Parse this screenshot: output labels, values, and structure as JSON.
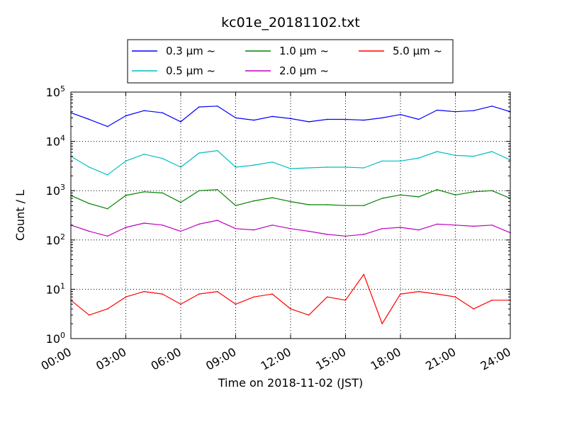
{
  "chart_data": {
    "type": "line",
    "title": "kc01e_20181102.txt",
    "xlabel": "Time on 2018-11-02 (JST)",
    "ylabel": "Count / L",
    "yscale": "log",
    "ylim": [
      1,
      100000
    ],
    "xlim": [
      "00:00",
      "24:00"
    ],
    "xticks": [
      "00:00",
      "03:00",
      "06:00",
      "09:00",
      "12:00",
      "15:00",
      "18:00",
      "21:00",
      "24:00"
    ],
    "yticks": [
      {
        "base": "10",
        "exp": "0"
      },
      {
        "base": "10",
        "exp": "1"
      },
      {
        "base": "10",
        "exp": "2"
      },
      {
        "base": "10",
        "exp": "3"
      },
      {
        "base": "10",
        "exp": "4"
      },
      {
        "base": "10",
        "exp": "5"
      }
    ],
    "grid": true,
    "legend_position": "top",
    "x_hours": [
      0,
      1,
      2,
      3,
      4,
      5,
      6,
      7,
      8,
      9,
      10,
      11,
      12,
      13,
      14,
      15,
      16,
      17,
      18,
      19,
      20,
      21,
      22,
      23,
      24
    ],
    "series": [
      {
        "name": "0.3 μm ~",
        "color": "#0000ff",
        "values": [
          38000,
          28000,
          20000,
          33000,
          42000,
          38000,
          25000,
          50000,
          52000,
          30000,
          27000,
          32000,
          29000,
          25000,
          28000,
          28000,
          27000,
          30000,
          35000,
          28000,
          43000,
          40000,
          42000,
          52000,
          40000
        ]
      },
      {
        "name": "0.5 μm ~",
        "color": "#00bfbf",
        "values": [
          5000,
          3000,
          2100,
          4000,
          5500,
          4500,
          3000,
          5800,
          6500,
          3000,
          3300,
          3800,
          2800,
          2900,
          3000,
          3000,
          2900,
          4000,
          4000,
          4600,
          6200,
          5200,
          5000,
          6200,
          4200
        ]
      },
      {
        "name": "1.0 μm ~",
        "color": "#008000",
        "values": [
          800,
          550,
          430,
          800,
          950,
          900,
          580,
          1000,
          1050,
          500,
          620,
          720,
          600,
          520,
          520,
          500,
          500,
          700,
          820,
          750,
          1050,
          820,
          950,
          1000,
          700
        ]
      },
      {
        "name": "2.0 μm ~",
        "color": "#bf00bf",
        "values": [
          200,
          150,
          120,
          180,
          220,
          200,
          150,
          210,
          250,
          170,
          160,
          200,
          170,
          150,
          130,
          120,
          130,
          170,
          180,
          160,
          210,
          200,
          190,
          200,
          140
        ]
      },
      {
        "name": "5.0 μm ~",
        "color": "#ff0000",
        "values": [
          6,
          3,
          4,
          7,
          9,
          8,
          5,
          8,
          9,
          5,
          7,
          8,
          4,
          3,
          7,
          6,
          20,
          2,
          8,
          9,
          8,
          7,
          4,
          6,
          6
        ]
      }
    ]
  }
}
